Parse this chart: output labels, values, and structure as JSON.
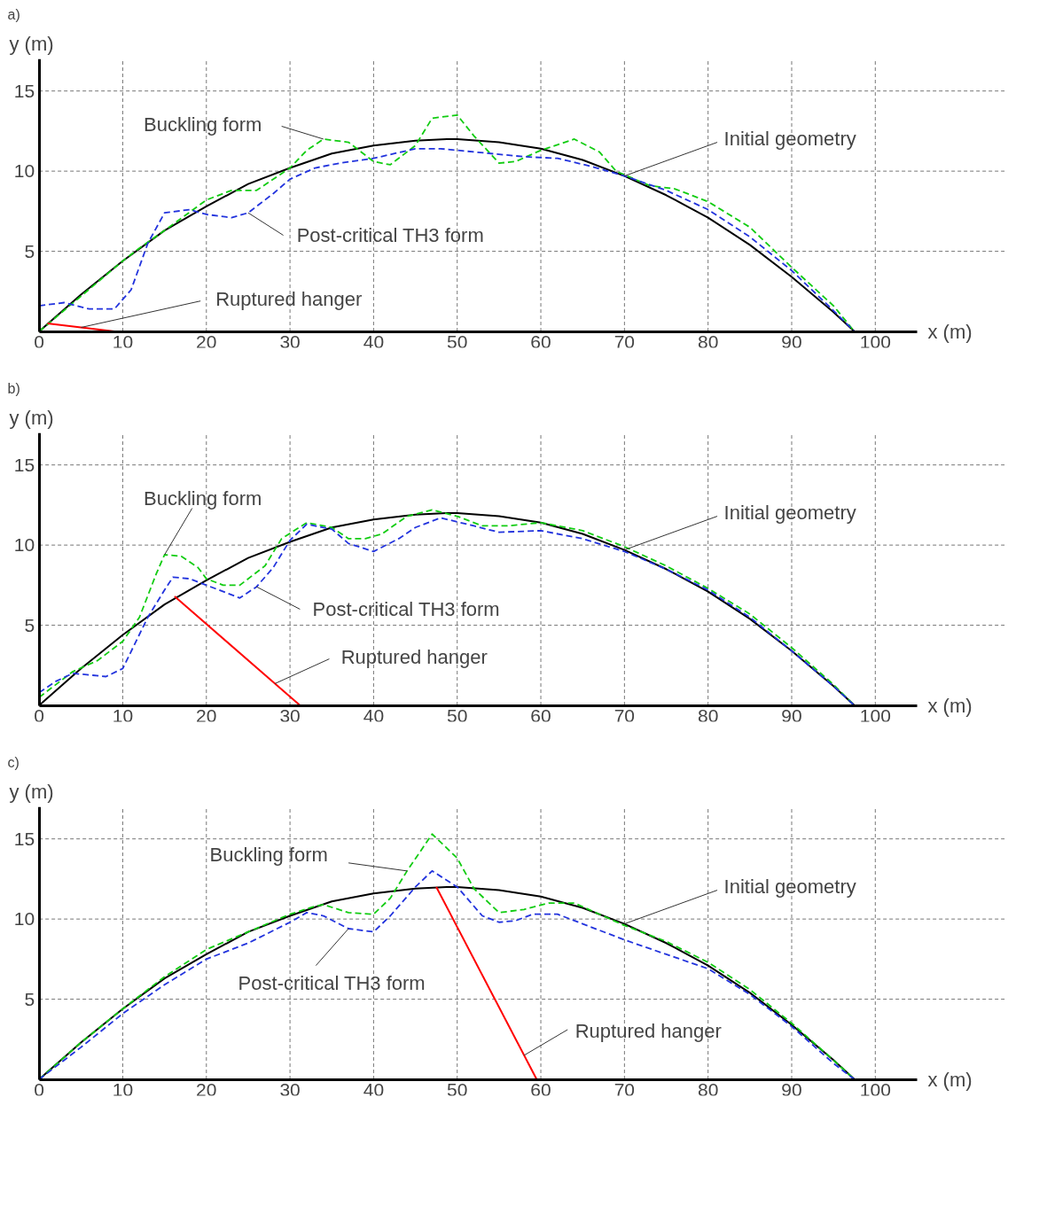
{
  "chart_data": [
    {
      "type": "line",
      "title": "a)",
      "xlabel": "x (m)",
      "ylabel": "y (m)",
      "xlim": [
        0,
        105
      ],
      "ylim": [
        0,
        17
      ],
      "xticks": [
        0,
        10,
        20,
        30,
        40,
        50,
        60,
        70,
        80,
        90,
        100
      ],
      "yticks": [
        5,
        10,
        15
      ],
      "grid": true,
      "annotations": [
        {
          "text": "Buckling form",
          "x": 34,
          "y": 12.0
        },
        {
          "text": "Initial geometry",
          "x": 70,
          "y": 9.7
        },
        {
          "text": "Post-critical TH3 form",
          "x": 25,
          "y": 7.4
        },
        {
          "text": "Ruptured hanger",
          "x": 5,
          "y": 0.25
        }
      ],
      "series": [
        {
          "color": "#000000",
          "line_style": "solid",
          "x": [
            0,
            5,
            10,
            15,
            20,
            25,
            30,
            35,
            40,
            45,
            48.75,
            50,
            55,
            60,
            65,
            70,
            75,
            80,
            85,
            90,
            95,
            97.5
          ],
          "values": [
            0,
            2.3,
            4.4,
            6.3,
            7.8,
            9.2,
            10.2,
            11.1,
            11.6,
            11.9,
            12,
            12,
            11.8,
            11.4,
            10.7,
            9.7,
            8.5,
            7.1,
            5.4,
            3.4,
            1.2,
            0
          ]
        },
        {
          "color": "#11cc11",
          "line_style": "dashed",
          "x": [
            0,
            5,
            10,
            12,
            15,
            20,
            23,
            26,
            30,
            32,
            34,
            37,
            40,
            42,
            45,
            47,
            50,
            52,
            55,
            57,
            60,
            64,
            67,
            69,
            73,
            76,
            80,
            85,
            90,
            95,
            97.5
          ],
          "values": [
            0,
            2.2,
            4.4,
            5.2,
            6.3,
            8.2,
            8.8,
            8.8,
            10.2,
            11.3,
            12.0,
            11.8,
            10.6,
            10.4,
            11.6,
            13.3,
            13.5,
            12.2,
            10.5,
            10.6,
            11.3,
            12.0,
            11.2,
            10.0,
            9.1,
            8.9,
            8.1,
            6.5,
            4.0,
            1.6,
            0
          ]
        },
        {
          "color": "#2233dd",
          "line_style": "dashed",
          "x": [
            0,
            3,
            6,
            9,
            11,
            13,
            15,
            18,
            20,
            23,
            25,
            28,
            30,
            33,
            36,
            40,
            45,
            48,
            52,
            58,
            62,
            66,
            70,
            75,
            80,
            85,
            90,
            95,
            97.5
          ],
          "values": [
            1.6,
            1.8,
            1.4,
            1.4,
            2.6,
            5.5,
            7.4,
            7.6,
            7.3,
            7.1,
            7.4,
            8.6,
            9.5,
            10.2,
            10.5,
            10.8,
            11.4,
            11.4,
            11.2,
            10.9,
            10.8,
            10.3,
            9.7,
            8.8,
            7.6,
            5.9,
            3.8,
            1.3,
            0
          ]
        },
        {
          "color": "#ff0000",
          "line_style": "solid",
          "x": [
            1,
            9
          ],
          "values": [
            0.5,
            0
          ]
        }
      ]
    },
    {
      "type": "line",
      "title": "b)",
      "xlabel": "x (m)",
      "ylabel": "y (m)",
      "xlim": [
        0,
        105
      ],
      "ylim": [
        0,
        17
      ],
      "xticks": [
        0,
        10,
        20,
        30,
        40,
        50,
        60,
        70,
        80,
        90,
        100
      ],
      "yticks": [
        5,
        10,
        15
      ],
      "grid": true,
      "annotations": [
        {
          "text": "Buckling form",
          "x": 15,
          "y": 9.4
        },
        {
          "text": "Initial geometry",
          "x": 70,
          "y": 9.7
        },
        {
          "text": "Post-critical TH3 form",
          "x": 26,
          "y": 7.4
        },
        {
          "text": "Ruptured hanger",
          "x": 28.2,
          "y": 1.36
        }
      ],
      "series": [
        {
          "color": "#000000",
          "line_style": "solid",
          "x": [
            0,
            5,
            10,
            15,
            20,
            25,
            30,
            35,
            40,
            45,
            48.75,
            50,
            55,
            60,
            65,
            70,
            75,
            80,
            85,
            90,
            95,
            97.5
          ],
          "values": [
            0,
            2.3,
            4.4,
            6.3,
            7.8,
            9.2,
            10.2,
            11.1,
            11.6,
            11.9,
            12,
            12,
            11.8,
            11.4,
            10.7,
            9.7,
            8.5,
            7.1,
            5.4,
            3.4,
            1.2,
            0
          ]
        },
        {
          "color": "#11cc11",
          "line_style": "dashed",
          "x": [
            0,
            4,
            7,
            10,
            12,
            14,
            15,
            17,
            19,
            20,
            22,
            24,
            27,
            29,
            32,
            35,
            37,
            39,
            41,
            44,
            47,
            50,
            53,
            56,
            60,
            65,
            70,
            75,
            80,
            85,
            90,
            95,
            97.5
          ],
          "values": [
            0.5,
            2.1,
            2.8,
            4.0,
            5.5,
            8.2,
            9.4,
            9.3,
            8.6,
            7.9,
            7.5,
            7.5,
            8.7,
            10.4,
            11.4,
            11.1,
            10.4,
            10.4,
            10.7,
            11.8,
            12.2,
            11.8,
            11.2,
            11.2,
            11.4,
            10.9,
            9.9,
            8.7,
            7.3,
            5.7,
            3.6,
            1.3,
            0
          ]
        },
        {
          "color": "#2233dd",
          "line_style": "dashed",
          "x": [
            0,
            2,
            4,
            8,
            10,
            13,
            15,
            16,
            18,
            20,
            24,
            26,
            28,
            30,
            32,
            35,
            37,
            40,
            43,
            45,
            48,
            52,
            55,
            60,
            65,
            70,
            75,
            80,
            85,
            90,
            95,
            97.5
          ],
          "values": [
            0.8,
            1.5,
            2.0,
            1.8,
            2.3,
            5.5,
            7.2,
            8.0,
            7.9,
            7.5,
            6.7,
            7.4,
            8.6,
            10.3,
            11.3,
            11.0,
            10.1,
            9.6,
            10.4,
            11.1,
            11.7,
            11.2,
            10.8,
            10.9,
            10.4,
            9.6,
            8.5,
            7.2,
            5.5,
            3.4,
            1.2,
            0
          ]
        },
        {
          "color": "#ff0000",
          "line_style": "solid",
          "x": [
            16.2,
            31.2
          ],
          "values": [
            6.8,
            0
          ]
        }
      ]
    },
    {
      "type": "line",
      "title": "c)",
      "xlabel": "x (m)",
      "ylabel": "y (m)",
      "xlim": [
        0,
        105
      ],
      "ylim": [
        0,
        17
      ],
      "xticks": [
        0,
        10,
        20,
        30,
        40,
        50,
        60,
        70,
        80,
        90,
        100
      ],
      "yticks": [
        5,
        10,
        15
      ],
      "grid": true,
      "annotations": [
        {
          "text": "Buckling form",
          "x": 44,
          "y": 13.0
        },
        {
          "text": "Initial geometry",
          "x": 70,
          "y": 9.7
        },
        {
          "text": "Post-critical TH3 form",
          "x": 37,
          "y": 9.4
        },
        {
          "text": "Ruptured hanger",
          "x": 58,
          "y": 1.5
        }
      ],
      "series": [
        {
          "color": "#000000",
          "line_style": "solid",
          "x": [
            0,
            5,
            10,
            15,
            20,
            25,
            30,
            35,
            40,
            45,
            48.75,
            50,
            55,
            60,
            65,
            70,
            75,
            80,
            85,
            90,
            95,
            97.5
          ],
          "values": [
            0,
            2.3,
            4.4,
            6.3,
            7.8,
            9.2,
            10.2,
            11.1,
            11.6,
            11.9,
            12,
            12,
            11.8,
            11.4,
            10.7,
            9.7,
            8.5,
            7.1,
            5.4,
            3.4,
            1.2,
            0
          ]
        },
        {
          "color": "#11cc11",
          "line_style": "dashed",
          "x": [
            0,
            5,
            10,
            15,
            20,
            25,
            30,
            33,
            34,
            37,
            40,
            42,
            44,
            47,
            50,
            52,
            55,
            58,
            61,
            64,
            67,
            70,
            75,
            80,
            85,
            90,
            95,
            97.5
          ],
          "values": [
            0,
            2.3,
            4.4,
            6.4,
            8.1,
            9.2,
            10.3,
            10.8,
            10.9,
            10.4,
            10.3,
            11.3,
            13.0,
            15.3,
            13.8,
            11.9,
            10.4,
            10.6,
            11.0,
            11.0,
            10.3,
            9.6,
            8.6,
            7.3,
            5.6,
            3.5,
            1.2,
            0
          ]
        },
        {
          "color": "#2233dd",
          "line_style": "dashed",
          "x": [
            0,
            5,
            10,
            15,
            20,
            25,
            30,
            32,
            34,
            37,
            40,
            42,
            45,
            47,
            50,
            53,
            55,
            57,
            59,
            62,
            64,
            70,
            75,
            80,
            85,
            90,
            95,
            97.5
          ],
          "values": [
            0,
            2.0,
            4.1,
            5.9,
            7.5,
            8.5,
            9.8,
            10.4,
            10.2,
            9.4,
            9.2,
            10.2,
            12.0,
            13.0,
            12.0,
            10.2,
            9.8,
            9.9,
            10.3,
            10.3,
            9.9,
            8.7,
            7.8,
            6.9,
            5.3,
            3.3,
            1.0,
            0
          ]
        },
        {
          "color": "#ff0000",
          "line_style": "solid",
          "x": [
            47.5,
            59.5
          ],
          "values": [
            12,
            0
          ]
        }
      ]
    }
  ]
}
